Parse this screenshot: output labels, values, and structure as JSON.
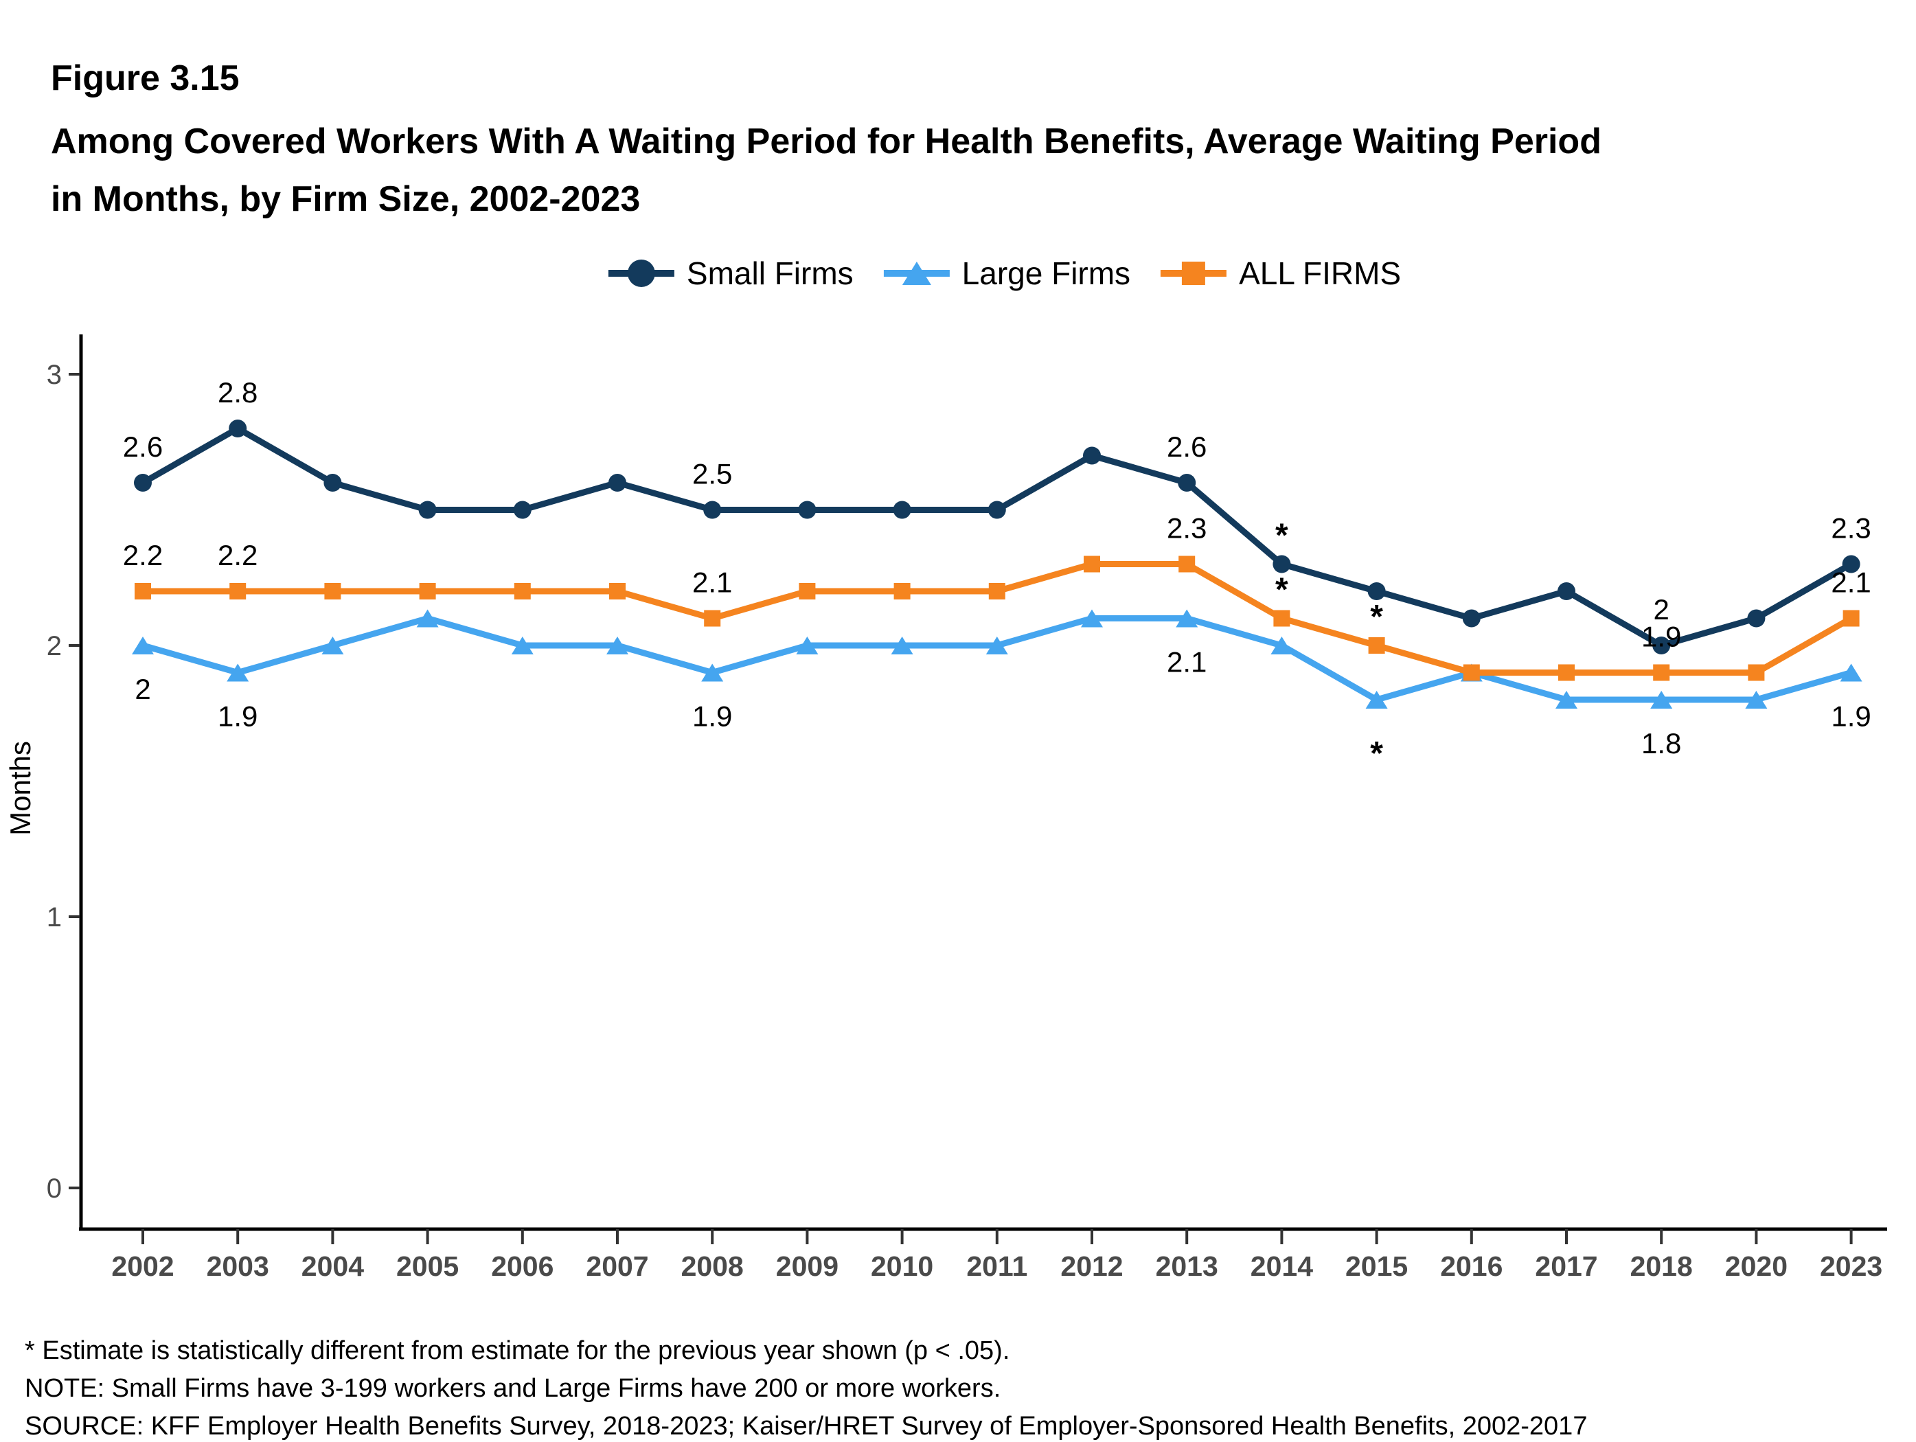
{
  "figure_label": "Figure 3.15",
  "title": {
    "line1": "Among Covered Workers With A Waiting Period for Health Benefits, Average Waiting Period",
    "line2": "in Months, by Firm Size, 2002-2023"
  },
  "footnotes": [
    "* Estimate is statistically different from estimate for the previous year shown (p < .05).",
    "NOTE: Small Firms have 3-199 workers and Large Firms have 200 or more workers.",
    "SOURCE: KFF Employer Health Benefits Survey, 2018-2023; Kaiser/HRET Survey of Employer-Sponsored Health Benefits, 2002-2017"
  ],
  "chart_data": {
    "type": "line",
    "ylabel": "Months",
    "yticks": [
      0,
      1,
      2,
      3
    ],
    "ylim": [
      0,
      3.15
    ],
    "grid": false,
    "legend_position": "top-center",
    "asterisk_symbol": "*",
    "categories": [
      "2002",
      "2003",
      "2004",
      "2005",
      "2006",
      "2007",
      "2008",
      "2009",
      "2010",
      "2011",
      "2012",
      "2013",
      "2014",
      "2015",
      "2016",
      "2017",
      "2018",
      "2020",
      "2023"
    ],
    "series": [
      {
        "name": "Small Firms",
        "color": "#133A5C",
        "marker": "circle",
        "values": [
          2.6,
          2.8,
          2.6,
          2.5,
          2.5,
          2.6,
          2.5,
          2.5,
          2.5,
          2.5,
          2.7,
          2.6,
          2.3,
          2.2,
          2.1,
          2.2,
          2.0,
          2.1,
          2.3
        ],
        "point_labels": [
          {
            "year": "2002",
            "text": "2.6",
            "side": "above"
          },
          {
            "year": "2003",
            "text": "2.8",
            "side": "above"
          },
          {
            "year": "2008",
            "text": "2.5",
            "side": "above"
          },
          {
            "year": "2013",
            "text": "2.6",
            "side": "above"
          },
          {
            "year": "2018",
            "text": "2",
            "side": "above"
          },
          {
            "year": "2023",
            "text": "2.3",
            "side": "above"
          }
        ]
      },
      {
        "name": "Large Firms",
        "color": "#45A5EF",
        "marker": "triangle",
        "values": [
          2.0,
          1.9,
          2.0,
          2.1,
          2.0,
          2.0,
          1.9,
          2.0,
          2.0,
          2.0,
          2.1,
          2.1,
          2.0,
          1.8,
          1.9,
          1.8,
          1.8,
          1.8,
          1.9
        ],
        "point_labels": [
          {
            "year": "2002",
            "text": "2",
            "side": "below"
          },
          {
            "year": "2003",
            "text": "1.9",
            "side": "below"
          },
          {
            "year": "2008",
            "text": "1.9",
            "side": "below"
          },
          {
            "year": "2013",
            "text": "2.1",
            "side": "below"
          },
          {
            "year": "2018",
            "text": "1.8",
            "side": "below"
          },
          {
            "year": "2023",
            "text": "1.9",
            "side": "below"
          }
        ]
      },
      {
        "name": "ALL FIRMS",
        "color": "#F5841F",
        "marker": "square",
        "values": [
          2.2,
          2.2,
          2.2,
          2.2,
          2.2,
          2.2,
          2.1,
          2.2,
          2.2,
          2.2,
          2.3,
          2.3,
          2.1,
          2.0,
          1.9,
          1.9,
          1.9,
          1.9,
          2.1
        ],
        "point_labels": [
          {
            "year": "2002",
            "text": "2.2",
            "side": "above"
          },
          {
            "year": "2003",
            "text": "2.2",
            "side": "above"
          },
          {
            "year": "2008",
            "text": "2.1",
            "side": "above"
          },
          {
            "year": "2013",
            "text": "2.3",
            "side": "above"
          },
          {
            "year": "2018",
            "text": "1.9",
            "side": "above"
          },
          {
            "year": "2023",
            "text": "2.1",
            "side": "above"
          }
        ]
      }
    ],
    "asterisks": [
      {
        "year": "2014",
        "series": "Small Firms",
        "side": "above"
      },
      {
        "year": "2014",
        "series": "ALL FIRMS",
        "side": "above"
      },
      {
        "year": "2015",
        "series": "ALL FIRMS",
        "side": "above"
      },
      {
        "year": "2015",
        "series": "Large Firms",
        "side": "below"
      }
    ],
    "axis_color": "#000000",
    "tick_color": "#333333",
    "tick_label_color": "#4a4a4a"
  }
}
